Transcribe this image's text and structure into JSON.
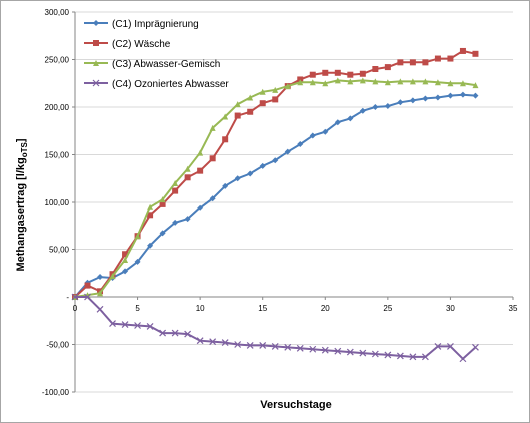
{
  "chart_data": {
    "type": "line",
    "xlabel": "Versuchstage",
    "ylabel_main": "Methangasertrag [l/kg",
    "ylabel_sub": "oTS",
    "ylabel_end": "]",
    "xlim": [
      0,
      35
    ],
    "ylim": [
      -100,
      300
    ],
    "x_ticks": [
      0,
      5,
      10,
      15,
      20,
      25,
      30,
      35
    ],
    "y_ticks": [
      -100,
      -50,
      0,
      50,
      100,
      150,
      200,
      250,
      300
    ],
    "y_tick_labels": [
      "-100,00",
      "-50,00",
      "-",
      "50,00",
      "100,00",
      "150,00",
      "200,00",
      "250,00",
      "300,00"
    ],
    "legend_position": "top-left",
    "grid": "horizontal",
    "series": [
      {
        "name": "(C1) Imprägnierung",
        "color": "#4a7ebb",
        "marker": "diamond",
        "x": [
          0,
          1,
          2,
          3,
          4,
          5,
          6,
          7,
          8,
          9,
          10,
          11,
          12,
          13,
          14,
          15,
          16,
          17,
          18,
          19,
          20,
          21,
          22,
          23,
          24,
          25,
          26,
          27,
          28,
          29,
          30,
          31,
          32
        ],
        "y": [
          0,
          15,
          21,
          20,
          27,
          37,
          54,
          67,
          78,
          82,
          94,
          104,
          117,
          125,
          130,
          138,
          144,
          153,
          161,
          170,
          174,
          184,
          188,
          196,
          200,
          201,
          205,
          207,
          209,
          210,
          212,
          213,
          212
        ]
      },
      {
        "name": "(C2) Wäsche",
        "color": "#be4b48",
        "marker": "square",
        "x": [
          0,
          1,
          2,
          3,
          4,
          5,
          6,
          7,
          8,
          9,
          10,
          11,
          12,
          13,
          14,
          15,
          16,
          17,
          18,
          19,
          20,
          21,
          22,
          23,
          24,
          25,
          26,
          27,
          28,
          29,
          30,
          31,
          32
        ],
        "y": [
          0,
          12,
          6,
          24,
          45,
          64,
          86,
          98,
          112,
          126,
          133,
          146,
          166,
          191,
          195,
          204,
          208,
          222,
          229,
          234,
          236,
          236,
          234,
          235,
          240,
          242,
          247,
          247,
          247,
          251,
          251,
          259,
          256
        ]
      },
      {
        "name": "(C3) Abwasser-Gemisch",
        "color": "#98b954",
        "marker": "triangle",
        "x": [
          0,
          1,
          2,
          3,
          4,
          5,
          6,
          7,
          8,
          9,
          10,
          11,
          12,
          13,
          14,
          15,
          16,
          17,
          18,
          19,
          20,
          21,
          22,
          23,
          24,
          25,
          26,
          27,
          28,
          29,
          30,
          31,
          32
        ],
        "y": [
          0,
          2,
          4,
          22,
          39,
          64,
          95,
          103,
          120,
          135,
          152,
          178,
          190,
          203,
          210,
          216,
          218,
          222,
          226,
          226,
          225,
          228,
          227,
          228,
          227,
          226,
          227,
          227,
          227,
          226,
          225,
          225,
          223
        ]
      },
      {
        "name": "(C4) Ozoniertes Abwasser",
        "color": "#7d60a0",
        "marker": "x",
        "x": [
          0,
          1,
          2,
          3,
          4,
          5,
          6,
          7,
          8,
          9,
          10,
          11,
          12,
          13,
          14,
          15,
          16,
          17,
          18,
          19,
          20,
          21,
          22,
          23,
          24,
          25,
          26,
          27,
          28,
          29,
          30,
          31,
          32
        ],
        "y": [
          0,
          0,
          -13,
          -28,
          -29,
          -30,
          -31,
          -38,
          -38,
          -39,
          -46,
          -47,
          -48,
          -50,
          -51,
          -51,
          -52,
          -53,
          -54,
          -55,
          -56,
          -57,
          -58,
          -59,
          -60,
          -61,
          -62,
          -63,
          -63,
          -52,
          -52,
          -65,
          -53
        ]
      }
    ]
  }
}
